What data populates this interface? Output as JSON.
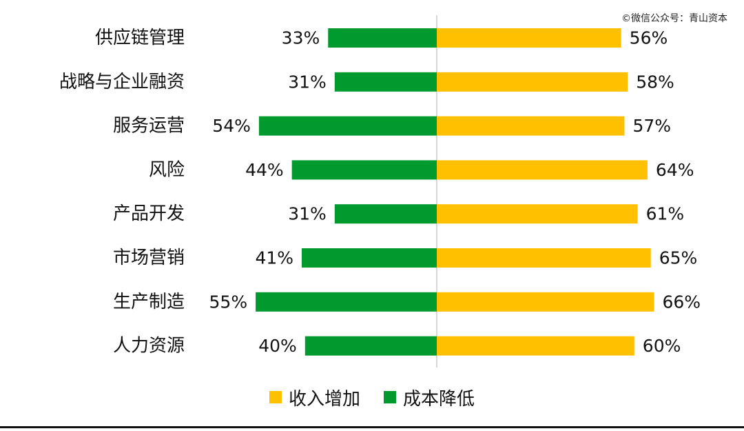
{
  "watermark": "©微信公众号：青山资本",
  "colors": {
    "revenue": "#FFC000",
    "cost": "#009A2F",
    "axis": "#cccccc",
    "text": "#111111"
  },
  "legend": [
    {
      "label": "收入增加",
      "color": "#FFC000"
    },
    {
      "label": "成本降低",
      "color": "#009A2F"
    }
  ],
  "chart_data": {
    "type": "bar",
    "orientation": "horizontal-diverging",
    "categories": [
      "供应链管理",
      "战略与企业融资",
      "服务运营",
      "风险",
      "产品开发",
      "市场营销",
      "生产制造",
      "人力资源"
    ],
    "series": [
      {
        "name": "成本降低",
        "values": [
          33,
          31,
          54,
          44,
          31,
          41,
          55,
          40
        ],
        "color": "#009A2F",
        "side": "left"
      },
      {
        "name": "收入增加",
        "values": [
          56,
          58,
          57,
          64,
          61,
          65,
          66,
          60
        ],
        "color": "#FFC000",
        "side": "right"
      }
    ],
    "value_suffix": "%",
    "legend_position": "bottom",
    "grid": false
  }
}
